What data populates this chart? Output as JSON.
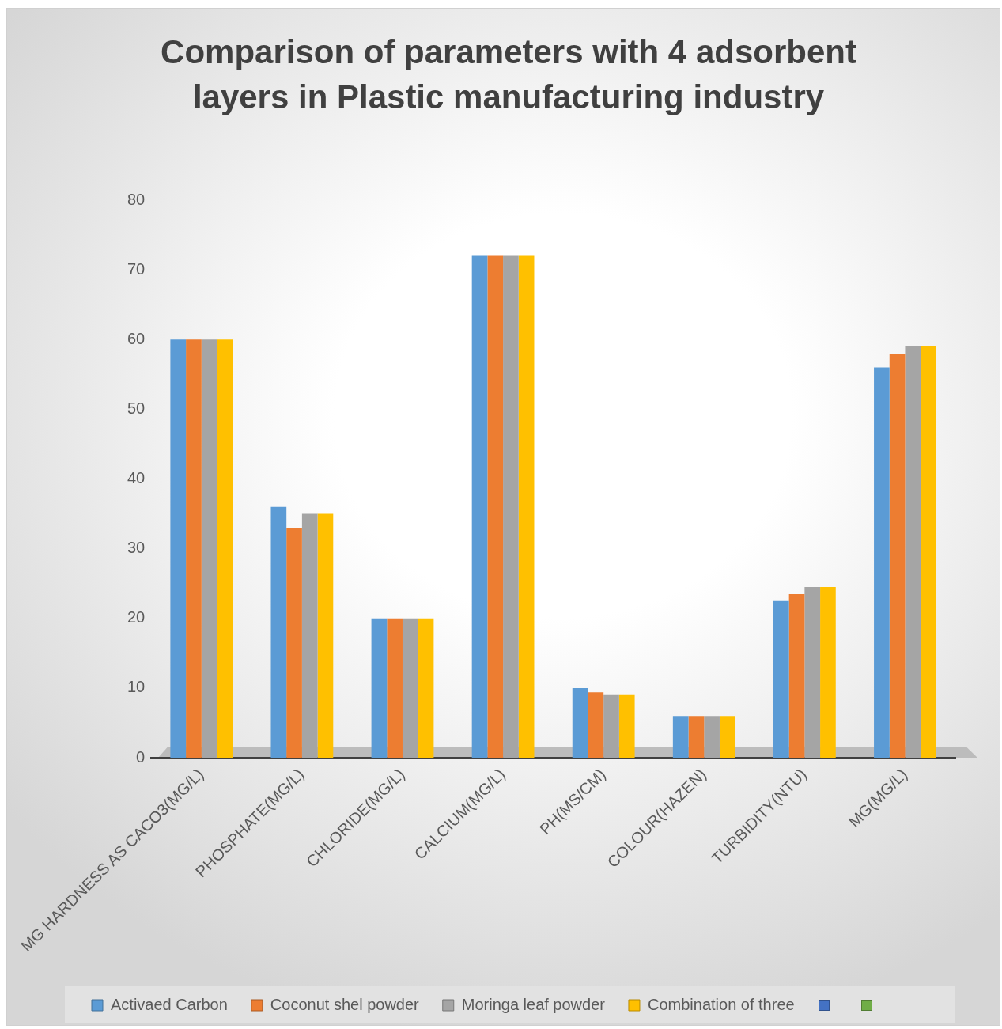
{
  "chart_data": {
    "type": "bar",
    "title": "Comparison of parameters with 4 adsorbent layers in Plastic manufacturing industry",
    "categories": [
      "MG HARDNESS AS CACO3(MG/L)",
      "PHOSPHATE(MG/L)",
      "CHLORIDE(MG/L)",
      "CALCIUM(MG/L)",
      "PH(MS/CM)",
      "COLOUR(HAZEN)",
      "TURBIDITY(NTU)",
      "MG(MG/L)"
    ],
    "series": [
      {
        "name": "Activaed Carbon",
        "color": "#5b9bd5",
        "values": [
          60,
          36,
          20,
          72,
          10,
          6,
          22.5,
          56
        ]
      },
      {
        "name": "Coconut shel powder",
        "color": "#ed7d31",
        "values": [
          60,
          33,
          20,
          72,
          9.4,
          6,
          23.5,
          58
        ]
      },
      {
        "name": "Moringa leaf powder",
        "color": "#a5a5a5",
        "values": [
          60,
          35,
          20,
          72,
          9,
          6,
          24.5,
          59
        ]
      },
      {
        "name": "Combination of three",
        "color": "#ffc000",
        "values": [
          60,
          35,
          20,
          72,
          9,
          6,
          24.5,
          59
        ]
      },
      {
        "color": "#4472c4",
        "values": [
          null,
          null,
          null,
          null,
          null,
          null,
          null,
          null
        ]
      },
      {
        "color": "#70ad47",
        "values": [
          null,
          null,
          null,
          null,
          null,
          null,
          null,
          null
        ]
      }
    ],
    "ylim": [
      0,
      80
    ],
    "yticks": [
      0,
      10,
      20,
      30,
      40,
      50,
      60,
      70,
      80
    ],
    "legend": "bottom"
  }
}
